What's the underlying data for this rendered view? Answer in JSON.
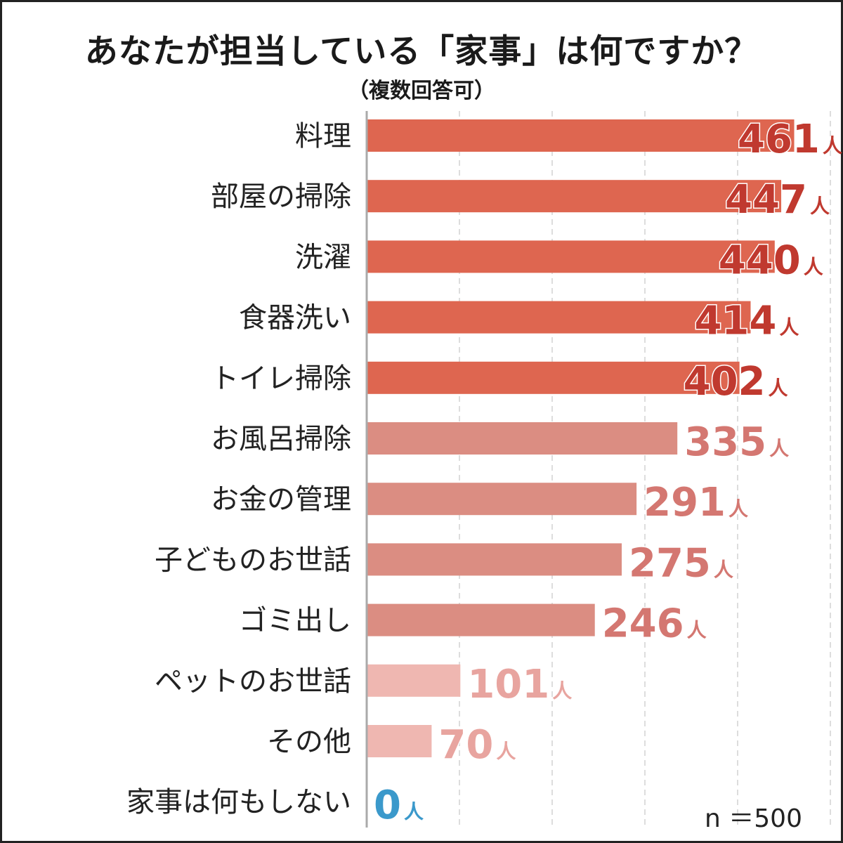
{
  "title": "あなたが担当している「家事」は何ですか？",
  "subtitle": "（複数回答可）",
  "note": "n ＝500",
  "colors": {
    "top_tier": "#de6650",
    "top_tier_text": "#c0392f",
    "mid_tier": "#db8d82",
    "mid_tier_text": "#d47771",
    "low_tier": "#efb7b1",
    "low_tier_text": "#e8a49f",
    "zero": "#3b99cb",
    "axis": "#aaaaaa",
    "grid": "#dddddd"
  },
  "chart_data": {
    "type": "bar",
    "orientation": "horizontal",
    "title": "あなたが担当している「家事」は何ですか？",
    "subtitle": "（複数回答可）",
    "unit": "人",
    "xlim": [
      0,
      500
    ],
    "grid": true,
    "categories": [
      "料理",
      "部屋の掃除",
      "洗濯",
      "食器洗い",
      "トイレ掃除",
      "お風呂掃除",
      "お金の管理",
      "子どものお世話",
      "ゴミ出し",
      "ペットのお世話",
      "その他",
      "家事は何もしない"
    ],
    "values": [
      461,
      447,
      440,
      414,
      402,
      335,
      291,
      275,
      246,
      101,
      70,
      0
    ],
    "tiers": [
      "top",
      "top",
      "top",
      "top",
      "top",
      "mid",
      "mid",
      "mid",
      "mid",
      "low",
      "low",
      "zero"
    ]
  }
}
